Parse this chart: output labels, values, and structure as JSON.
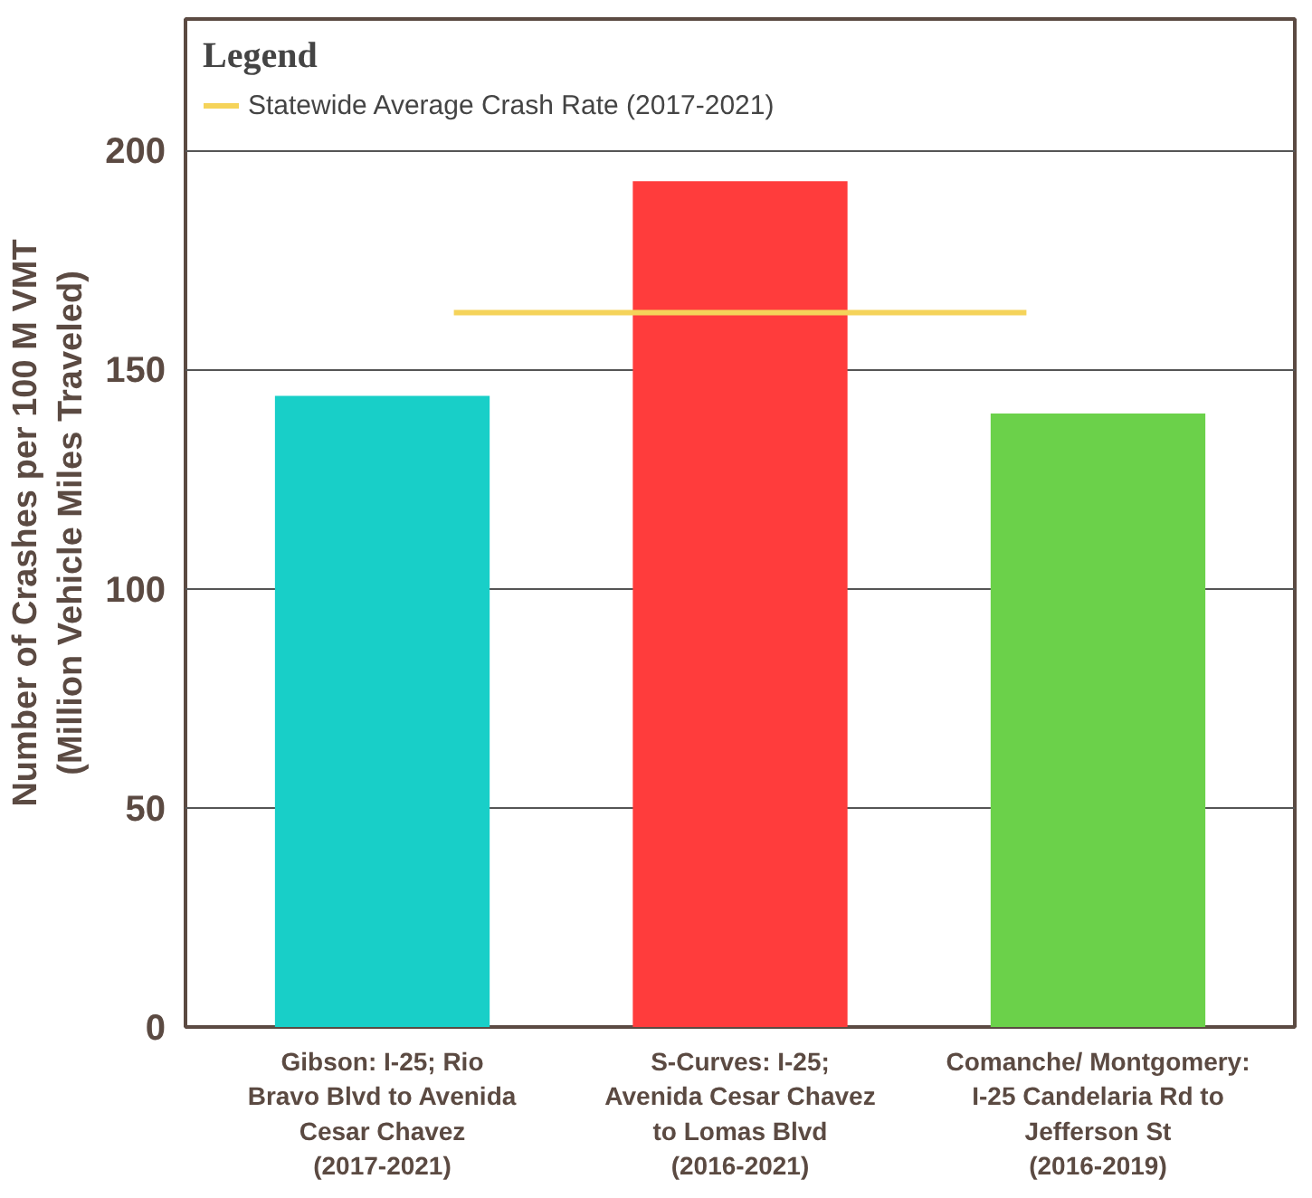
{
  "chart_data": {
    "type": "bar",
    "ylabel": "Number of Crashes per 100 M VMT (Million Vehicle Miles Traveled)",
    "legend_title": "Legend",
    "categories": [
      "Gibson: I-25; Rio Bravo Blvd to Avenida Cesar Chavez (2017-2021)",
      "S-Curves: I-25; Avenida Cesar Chavez to Lomas Blvd (2016-2021)",
      "Comanche/ Montgomery: I-25 Candelaria Rd to Jefferson St (2016-2019)"
    ],
    "values": [
      144,
      193,
      140
    ],
    "colors": [
      "#18cfc8",
      "#ff3c3c",
      "#6bd14a"
    ],
    "ylim": [
      0,
      230
    ],
    "yticks": [
      0,
      50,
      100,
      150,
      200
    ],
    "grid": "y",
    "legend": "top left",
    "ref_lines": [
      {
        "axis": "y",
        "value": 163,
        "label": "Statewide Average Crash Rate (2017-2021)",
        "color": "#f5d35a"
      }
    ]
  }
}
